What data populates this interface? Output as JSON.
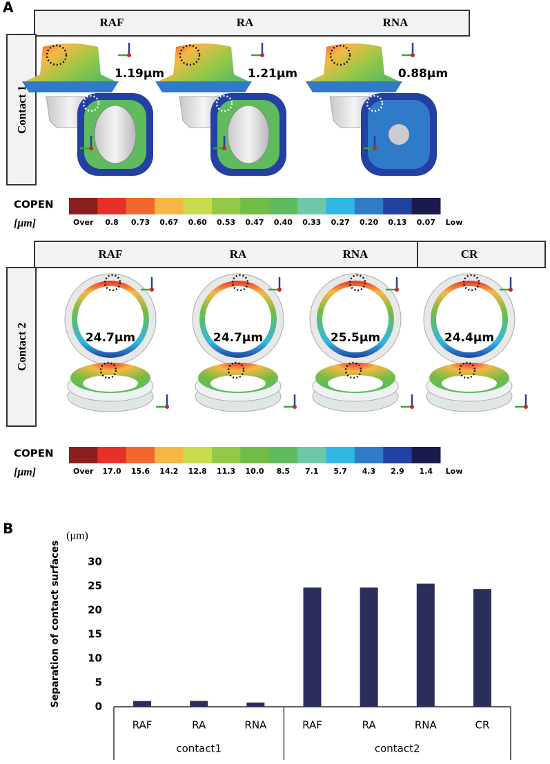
{
  "panel_a": {
    "label": "A",
    "contact1": {
      "row_label": "Contact 1",
      "columns": [
        "RAF",
        "RA",
        "RNA"
      ],
      "results": [
        "1.19μm",
        "1.21μm",
        "0.88μm"
      ],
      "colorbar": {
        "title": "COPEN",
        "unit": "[μm]",
        "labels": [
          "Over",
          "0.8",
          "0.73",
          "0.67",
          "0.60",
          "0.53",
          "0.47",
          "0.40",
          "0.33",
          "0.27",
          "0.20",
          "0.13",
          "0.07",
          "Low"
        ],
        "colors": [
          "#8b1f1f",
          "#e8302a",
          "#f0682c",
          "#f5b845",
          "#c9dc4c",
          "#94c947",
          "#72bd45",
          "#5fbb5e",
          "#6ec8a8",
          "#30b7e4",
          "#2f7bc7",
          "#2340a3",
          "#1b1a4c"
        ]
      }
    },
    "contact2": {
      "row_label": "Contact 2",
      "columns": [
        "RAF",
        "RA",
        "RNA",
        "CR"
      ],
      "results": [
        "24.7μm",
        "24.7μm",
        "25.5μm",
        "24.4μm"
      ],
      "colorbar": {
        "title": "COPEN",
        "unit": "[μm]",
        "labels": [
          "Over",
          "17.0",
          "15.6",
          "14.2",
          "12.8",
          "11.3",
          "10.0",
          "8.5",
          "7.1",
          "5.7",
          "4.3",
          "2.9",
          "1.4",
          "Low"
        ],
        "colors": [
          "#8b1f1f",
          "#e8302a",
          "#f0682c",
          "#f5b845",
          "#c9dc4c",
          "#94c947",
          "#72bd45",
          "#5fbb5e",
          "#6ec8a8",
          "#30b7e4",
          "#2f7bc7",
          "#2340a3",
          "#1b1a4c"
        ]
      }
    }
  },
  "panel_b_label": "B",
  "chart_data": {
    "type": "bar",
    "y_unit": "(μm)",
    "ylabel": "Separation of contact surfaces",
    "groups": [
      {
        "name": "contact1",
        "categories": [
          "RAF",
          "RA",
          "RNA"
        ],
        "values": [
          1.19,
          1.21,
          0.88
        ]
      },
      {
        "name": "contact2",
        "categories": [
          "RAF",
          "RA",
          "RNA",
          "CR"
        ],
        "values": [
          24.7,
          24.7,
          25.5,
          24.4
        ]
      }
    ],
    "color": "#2b2e5a",
    "ylim": [
      0,
      30
    ],
    "yticks": [
      0,
      5,
      10,
      15,
      20,
      25,
      30
    ],
    "grid": false
  }
}
